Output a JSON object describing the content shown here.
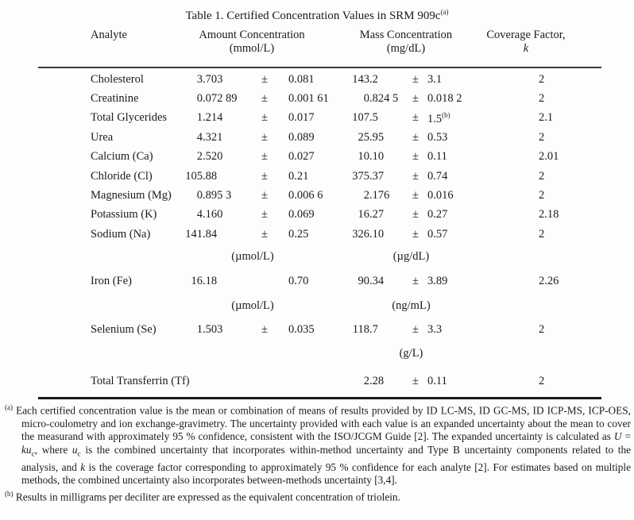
{
  "title": {
    "text": "Table 1.  Certified Concentration Values in SRM 909c",
    "sup": "(a)"
  },
  "table": {
    "headers": {
      "analyte": "Analyte",
      "amount": "Amount Concentration",
      "amount_unit": "(mmol/L)",
      "mass": "Mass Concentration",
      "mass_unit": "(mg/dL)",
      "coverage_line1": "Coverage Factor,",
      "coverage_line2": "k"
    },
    "rows": [
      {
        "type": "data",
        "analyte": "Cholesterol",
        "amount": "3.703",
        "amount_pm": "±",
        "amount_unc": "0.081",
        "mass": "143.2",
        "mass_pm": "±",
        "mass_unc": "3.1",
        "mass_unc_sup": "",
        "k": "2"
      },
      {
        "type": "data",
        "analyte": "Creatinine",
        "amount": "0.072 89",
        "amount_pm": "±",
        "amount_unc": "0.001 61",
        "mass": "0.824 5",
        "mass_pm": "±",
        "mass_unc": "0.018 2",
        "mass_unc_sup": "",
        "k": "2"
      },
      {
        "type": "data",
        "analyte": "Total Glycerides",
        "amount": "1.214",
        "amount_pm": "±",
        "amount_unc": "0.017",
        "mass": "107.5",
        "mass_pm": "±",
        "mass_unc": "1.5",
        "mass_unc_sup": "(b)",
        "k": "2.1"
      },
      {
        "type": "data",
        "analyte": "Urea",
        "amount": "4.321",
        "amount_pm": "±",
        "amount_unc": "0.089",
        "mass": "25.95",
        "mass_pm": "±",
        "mass_unc": "0.53",
        "mass_unc_sup": "",
        "k": "2"
      },
      {
        "type": "data",
        "analyte": "Calcium (Ca)",
        "amount": "2.520",
        "amount_pm": "±",
        "amount_unc": "0.027",
        "mass": "10.10",
        "mass_pm": "±",
        "mass_unc": "0.11",
        "mass_unc_sup": "",
        "k": "2.01"
      },
      {
        "type": "data",
        "analyte": "Chloride (Cl)",
        "amount": "105.88",
        "amount_pm": "±",
        "amount_unc": "0.21",
        "mass": "375.37",
        "mass_pm": "±",
        "mass_unc": "0.74",
        "mass_unc_sup": "",
        "k": "2"
      },
      {
        "type": "data",
        "analyte": "Magnesium (Mg)",
        "amount": "0.895 3",
        "amount_pm": "±",
        "amount_unc": "0.006 6",
        "mass": "2.176",
        "mass_pm": "±",
        "mass_unc": "0.016",
        "mass_unc_sup": "",
        "k": "2"
      },
      {
        "type": "data",
        "analyte": "Potassium (K)",
        "amount": "4.160",
        "amount_pm": "±",
        "amount_unc": "0.069",
        "mass": "16.27",
        "mass_pm": "±",
        "mass_unc": "0.27",
        "mass_unc_sup": "",
        "k": "2.18"
      },
      {
        "type": "data",
        "analyte": "Sodium (Na)",
        "amount": "141.84",
        "amount_pm": "±",
        "amount_unc": "0.25",
        "mass": "326.10",
        "mass_pm": "±",
        "mass_unc": "0.57",
        "mass_unc_sup": "",
        "k": "2"
      },
      {
        "type": "units",
        "amount_unit": "(µmol/L)",
        "mass_unit": "(µg/dL)"
      },
      {
        "type": "data",
        "analyte": "Iron (Fe)",
        "amount": "16.18",
        "amount_pm": "",
        "amount_unc": "0.70",
        "mass": "90.34",
        "mass_pm": "±",
        "mass_unc": "3.89",
        "mass_unc_sup": "",
        "k": "2.26"
      },
      {
        "type": "units",
        "amount_unit": "(µmol/L)",
        "mass_unit": "(ng/mL)"
      },
      {
        "type": "data",
        "analyte": "Selenium (Se)",
        "amount": "1.503",
        "amount_pm": "±",
        "amount_unc": "0.035",
        "mass": "118.7",
        "mass_pm": "±",
        "mass_unc": "3.3",
        "mass_unc_sup": "",
        "k": "2"
      },
      {
        "type": "units",
        "amount_unit": "",
        "mass_unit": "(g/L)"
      },
      {
        "type": "data",
        "analyte": "Total Transferrin (Tf)",
        "amount": "",
        "amount_pm": "",
        "amount_unc": "",
        "mass": "2.28",
        "mass_pm": "±",
        "mass_unc": "0.11",
        "mass_unc_sup": "",
        "k": "2"
      }
    ]
  },
  "footnotes": [
    {
      "marker": "(a)",
      "segments": [
        {
          "text": "Each certified concentration value is the mean or combination of means of results provided by ID LC-MS, ID GC-MS, ID ICP-MS, ICP-OES, micro-coulometry and ion exchange-gravimetry.  The uncertainty provided with each value is an expanded uncertainty about the mean to cover the measurand with approximately 95 % confidence, consistent with the ISO/JCGM Guide [2].  The expanded uncertainty is calculated as ",
          "style": "normal"
        },
        {
          "text": "U",
          "style": "italic"
        },
        {
          "text": " = ",
          "style": "normal"
        },
        {
          "text": "ku",
          "style": "italic"
        },
        {
          "text": "c",
          "style": "sub"
        },
        {
          "text": ", where ",
          "style": "normal"
        },
        {
          "text": "u",
          "style": "italic"
        },
        {
          "text": "c",
          "style": "sub"
        },
        {
          "text": " is the combined uncertainty that incorporates within-method uncertainty and Type B uncertainty components related to the analysis, and ",
          "style": "normal"
        },
        {
          "text": "k",
          "style": "italic"
        },
        {
          "text": " is the coverage factor corresponding to approximately 95 % confidence for each analyte [2].  For estimates based on multiple methods, the combined uncertainty also incorporates between-methods uncertainty [3,4].",
          "style": "normal"
        }
      ]
    },
    {
      "marker": "(b)",
      "segments": [
        {
          "text": "Results in milligrams per deciliter are expressed as the equivalent concentration of triolein.",
          "style": "normal"
        }
      ]
    }
  ]
}
